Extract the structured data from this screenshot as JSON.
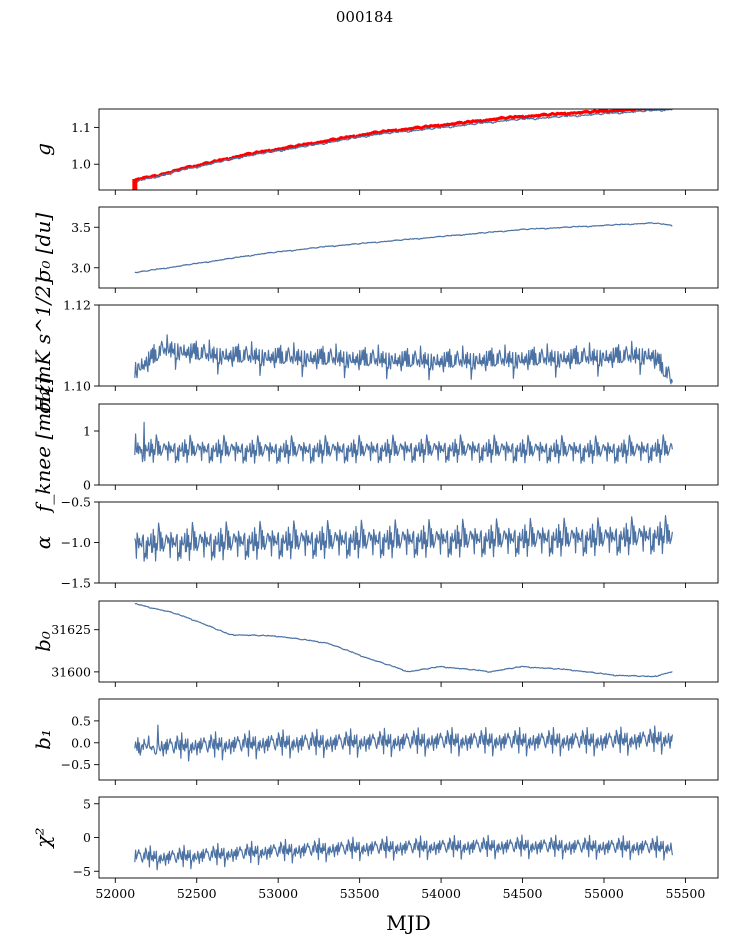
{
  "figure": {
    "title": "000184",
    "xlabel": "MJD"
  },
  "chart_data": {
    "type": "line",
    "title": "000184",
    "xlabel": "MJD",
    "xlim": [
      51900,
      55700
    ],
    "xticks": [
      52000,
      52500,
      53000,
      53500,
      54000,
      54500,
      55000,
      55500
    ],
    "x_range_data": [
      52120,
      55420
    ],
    "colors": {
      "series": "#4c72a4",
      "highlight": "#ff0000",
      "axes": "#000000"
    },
    "panels": [
      {
        "id": "g",
        "ylabel": "g",
        "ylim": [
          0.93,
          1.15
        ],
        "yticks": [
          1.0,
          1.1
        ],
        "yticklabels": [
          "1.0",
          "1.1"
        ],
        "series": [
          {
            "name": "g (fit)",
            "color": "#ff0000",
            "points": [
              [
                52120,
                0.955
              ],
              [
                52400,
                0.985
              ],
              [
                52800,
                1.025
              ],
              [
                53200,
                1.055
              ],
              [
                53600,
                1.085
              ],
              [
                54000,
                1.105
              ],
              [
                54400,
                1.125
              ],
              [
                54800,
                1.138
              ],
              [
                55200,
                1.148
              ],
              [
                55420,
                1.152
              ]
            ]
          },
          {
            "name": "g",
            "color": "#4c72a4",
            "points": [
              [
                52130,
                0.952
              ],
              [
                52400,
                0.982
              ],
              [
                52800,
                1.021
              ],
              [
                53200,
                1.05
              ],
              [
                53600,
                1.08
              ],
              [
                54000,
                1.098
              ],
              [
                54400,
                1.118
              ],
              [
                54800,
                1.13
              ],
              [
                55200,
                1.142
              ],
              [
                55420,
                1.148
              ]
            ]
          }
        ],
        "noise": 0.003,
        "markers": [
          {
            "x": 52120,
            "y1": 0.93,
            "y2": 0.96
          }
        ]
      },
      {
        "id": "sigma0_du",
        "ylabel": "σ₀ [du]",
        "ylim": [
          2.75,
          3.75
        ],
        "yticks": [
          3.0,
          3.5
        ],
        "yticklabels": [
          "3.0",
          "3.5"
        ],
        "series": [
          {
            "name": "sigma0 [du]",
            "color": "#4c72a4",
            "points": [
              [
                52130,
                2.94
              ],
              [
                52500,
                3.05
              ],
              [
                52900,
                3.17
              ],
              [
                53300,
                3.26
              ],
              [
                53700,
                3.33
              ],
              [
                54100,
                3.4
              ],
              [
                54500,
                3.47
              ],
              [
                54900,
                3.51
              ],
              [
                55300,
                3.55
              ],
              [
                55420,
                3.52
              ]
            ]
          }
        ],
        "noise": 0.008
      },
      {
        "id": "sigma0_mk",
        "ylabel": "σ₀[mK s^1/2]",
        "ylim": [
          1.1,
          1.12
        ],
        "yticks": [
          1.1,
          1.12
        ],
        "yticklabels": [
          "1.10",
          "1.12"
        ],
        "series": [
          {
            "name": "sigma0 [mK s^1/2]",
            "color": "#4c72a4",
            "points": [
              [
                52130,
                1.1035
              ],
              [
                52300,
                1.1085
              ],
              [
                52600,
                1.107
              ],
              [
                53000,
                1.1065
              ],
              [
                53500,
                1.106
              ],
              [
                54000,
                1.1055
              ],
              [
                54500,
                1.106
              ],
              [
                55000,
                1.1065
              ],
              [
                55300,
                1.107
              ],
              [
                55420,
                1.1005
              ]
            ]
          }
        ],
        "noise": 0.0016
      },
      {
        "id": "fknee",
        "ylabel": "f_knee [mHz]",
        "ylim": [
          0,
          1.5
        ],
        "yticks": [
          0,
          1
        ],
        "yticklabels": [
          "0",
          "1"
        ],
        "series": [
          {
            "name": "f_knee [mHz]",
            "color": "#4c72a4",
            "points": [
              [
                52130,
                0.62
              ],
              [
                53000,
                0.6
              ],
              [
                54000,
                0.62
              ],
              [
                55000,
                0.6
              ],
              [
                55420,
                0.62
              ]
            ]
          }
        ],
        "noise": 0.12,
        "spikes": 0.35
      },
      {
        "id": "alpha",
        "ylabel": "α",
        "ylim": [
          -1.5,
          -0.5
        ],
        "yticks": [
          -1.5,
          -1.0,
          -0.5
        ],
        "yticklabels": [
          "−1.5",
          "−1.0",
          "−0.5"
        ],
        "series": [
          {
            "name": "alpha",
            "color": "#4c72a4",
            "points": [
              [
                52130,
                -1.05
              ],
              [
                53000,
                -1.02
              ],
              [
                54000,
                -1.0
              ],
              [
                55000,
                -0.98
              ],
              [
                55420,
                -0.95
              ]
            ]
          }
        ],
        "noise": 0.11,
        "spikes": 0.25
      },
      {
        "id": "b0",
        "ylabel": "b₀",
        "ylim": [
          31594,
          31642
        ],
        "yticks": [
          31600,
          31625
        ],
        "yticklabels": [
          "31600",
          "31625"
        ],
        "series": [
          {
            "name": "b0",
            "color": "#4c72a4",
            "points": [
              [
                52130,
                31640
              ],
              [
                52350,
                31635
              ],
              [
                52500,
                31630
              ],
              [
                52700,
                31622
              ],
              [
                53000,
                31621
              ],
              [
                53300,
                31617
              ],
              [
                53550,
                31608
              ],
              [
                53800,
                31600
              ],
              [
                54000,
                31603
              ],
              [
                54300,
                31600
              ],
              [
                54500,
                31603
              ],
              [
                54800,
                31601
              ],
              [
                55050,
                31598
              ],
              [
                55300,
                31597
              ],
              [
                55420,
                31600
              ]
            ]
          }
        ],
        "noise": 0.4
      },
      {
        "id": "b1",
        "ylabel": "b₁",
        "ylim": [
          -0.85,
          1.0
        ],
        "yticks": [
          -0.5,
          0.0,
          0.5
        ],
        "yticklabels": [
          "−0.5",
          "0.0",
          "0.5"
        ],
        "series": [
          {
            "name": "b1",
            "color": "#4c72a4",
            "points": [
              [
                52130,
                -0.15
              ],
              [
                53000,
                -0.05
              ],
              [
                54000,
                0.0
              ],
              [
                55000,
                0.0
              ],
              [
                55420,
                0.05
              ]
            ]
          }
        ],
        "noise": 0.12,
        "spikes": 0.45
      },
      {
        "id": "chi2",
        "ylabel": "χ²",
        "ylim": [
          -6,
          6
        ],
        "yticks": [
          -5,
          0,
          5
        ],
        "yticklabels": [
          "−5",
          "0",
          "5"
        ],
        "series": [
          {
            "name": "chi2",
            "color": "#4c72a4",
            "points": [
              [
                52130,
                -3.0
              ],
              [
                52300,
                -3.2
              ],
              [
                52600,
                -2.8
              ],
              [
                53000,
                -2.2
              ],
              [
                53500,
                -1.8
              ],
              [
                54000,
                -1.6
              ],
              [
                54500,
                -1.5
              ],
              [
                55000,
                -1.6
              ],
              [
                55420,
                -1.7
              ]
            ]
          }
        ],
        "noise": 0.65,
        "spikes": 1.2
      }
    ]
  }
}
